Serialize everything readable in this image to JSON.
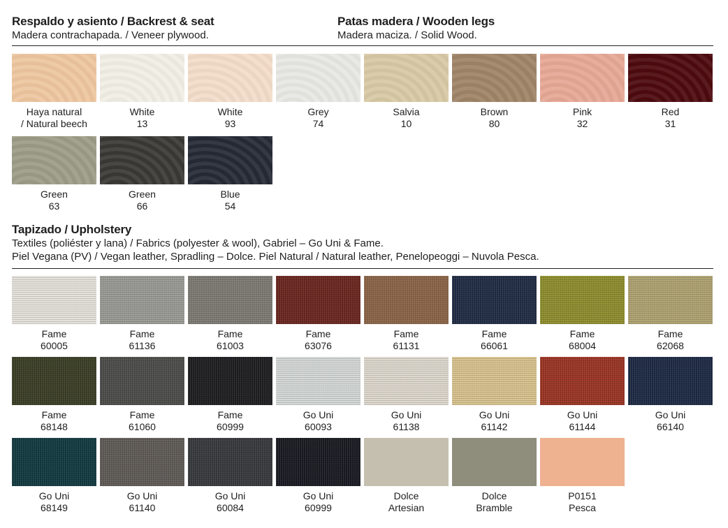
{
  "backrest": {
    "title": "Respaldo y asiento / Backrest & seat",
    "subtitle": "Madera contrachapada. / Veneer plywood."
  },
  "legs": {
    "title": "Patas madera / Wooden legs",
    "subtitle": "Madera maciza. / Solid Wood."
  },
  "wood_swatches": [
    {
      "name": "Haya natural",
      "code": "/ Natural beech",
      "color": "#eec6a0"
    },
    {
      "name": "White",
      "code": "13",
      "color": "#f1eee5"
    },
    {
      "name": "White",
      "code": "93",
      "color": "#f3dcc9"
    },
    {
      "name": "Grey",
      "code": "74",
      "color": "#e7e8e3"
    },
    {
      "name": "Salvia",
      "code": "10",
      "color": "#d8c9a5"
    },
    {
      "name": "Brown",
      "code": "80",
      "color": "#9f8467"
    },
    {
      "name": "Pink",
      "code": "32",
      "color": "#e6a896"
    },
    {
      "name": "Red",
      "code": "31",
      "color": "#4c0a0e"
    },
    {
      "name": "Green",
      "code": "63",
      "color": "#9d9c87"
    },
    {
      "name": "Green",
      "code": "66",
      "color": "#3b3936"
    },
    {
      "name": "Blue",
      "code": "54",
      "color": "#252a35"
    }
  ],
  "upholstery": {
    "title": "Tapizado / Upholstery",
    "line1": "Textiles (poliéster y lana) / Fabrics (polyester & wool), Gabriel – Go Uni & Fame.",
    "line2": "Piel Vegana (PV) / Vegan leather, Spradling – Dolce. Piel Natural / Natural leather, Penelopeoggi – Nuvola Pesca."
  },
  "fabric_swatches": [
    {
      "name": "Fame",
      "code": "60005",
      "color": "#e4e1da",
      "type": "fabric"
    },
    {
      "name": "Fame",
      "code": "61136",
      "color": "#999a94",
      "type": "fabric"
    },
    {
      "name": "Fame",
      "code": "61003",
      "color": "#7c7a72",
      "type": "fabric"
    },
    {
      "name": "Fame",
      "code": "63076",
      "color": "#6a261f",
      "type": "fabric"
    },
    {
      "name": "Fame",
      "code": "61131",
      "color": "#8a6447",
      "type": "fabric"
    },
    {
      "name": "Fame",
      "code": "66061",
      "color": "#202c44",
      "type": "fabric"
    },
    {
      "name": "Fame",
      "code": "68004",
      "color": "#8e8d2e",
      "type": "fabric"
    },
    {
      "name": "Fame",
      "code": "62068",
      "color": "#aea271",
      "type": "fabric"
    },
    {
      "name": "Fame",
      "code": "68148",
      "color": "#3b3e25",
      "type": "fabric"
    },
    {
      "name": "Fame",
      "code": "61060",
      "color": "#4c4c4a",
      "type": "fabric"
    },
    {
      "name": "Fame",
      "code": "60999",
      "color": "#1e1e20",
      "type": "fabric"
    },
    {
      "name": "Go Uni",
      "code": "60093",
      "color": "#d3d7d5",
      "type": "fabric"
    },
    {
      "name": "Go Uni",
      "code": "61138",
      "color": "#ddd7cd",
      "type": "fabric"
    },
    {
      "name": "Go Uni",
      "code": "61142",
      "color": "#d7c28e",
      "type": "fabric"
    },
    {
      "name": "Go Uni",
      "code": "61144",
      "color": "#9a3424",
      "type": "fabric"
    },
    {
      "name": "Go Uni",
      "code": "66140",
      "color": "#1d2a44",
      "type": "fabric"
    },
    {
      "name": "Go Uni",
      "code": "68149",
      "color": "#123a40",
      "type": "fabric"
    },
    {
      "name": "Go Uni",
      "code": "61140",
      "color": "#5f5a56",
      "type": "fabric"
    },
    {
      "name": "Go Uni",
      "code": "60084",
      "color": "#38393c",
      "type": "fabric"
    },
    {
      "name": "Go Uni",
      "code": "60999",
      "color": "#1a1b22",
      "type": "fabric"
    },
    {
      "name": "Dolce",
      "code": "Artesian",
      "color": "#c5bfb0",
      "type": "leather"
    },
    {
      "name": "Dolce",
      "code": "Bramble",
      "color": "#8f8d7b",
      "type": "leather"
    },
    {
      "name": "P0151",
      "code": "Pesca",
      "color": "#eeb291",
      "type": "leather"
    }
  ]
}
